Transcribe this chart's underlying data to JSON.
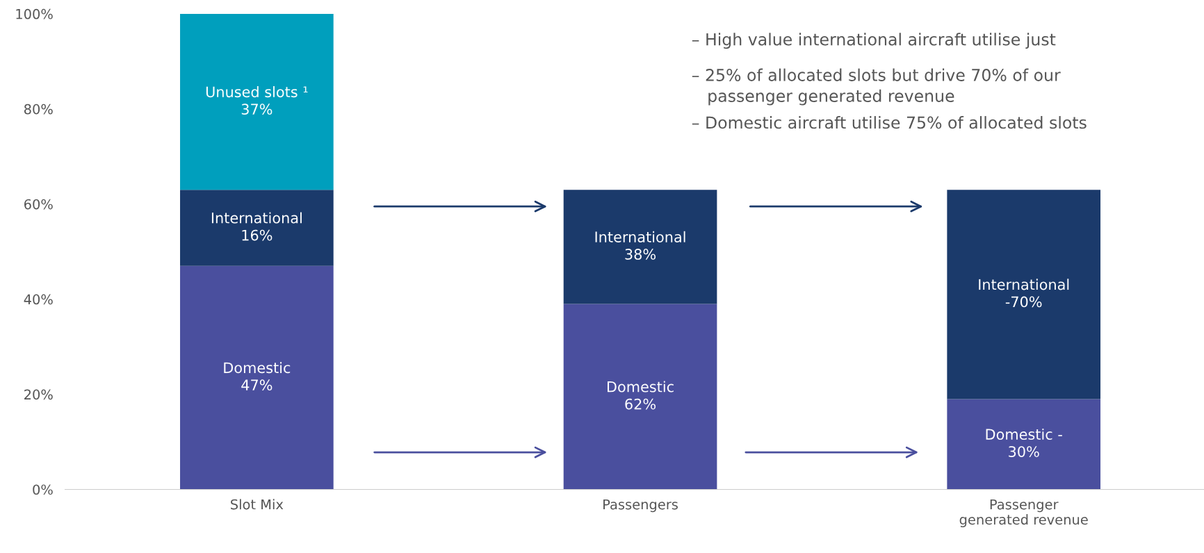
{
  "chart_data": {
    "type": "bar",
    "stacked": true,
    "categories": [
      "Slot Mix",
      "Passengers",
      "Passenger generated revenue"
    ],
    "series": [
      {
        "color": "#4a4f9e",
        "values": [
          47,
          39,
          19
        ]
      },
      {
        "color": "#1b3a6b",
        "values": [
          16,
          24,
          44
        ]
      },
      {
        "color": "#009fbd",
        "values": [
          37,
          null,
          null
        ]
      }
    ],
    "ylim": [
      0,
      100
    ],
    "yticks": [
      {
        "value": 0,
        "label": "0%"
      },
      {
        "value": 20,
        "label": "20%"
      },
      {
        "value": 40,
        "label": "40%"
      },
      {
        "value": 60,
        "label": "60%"
      },
      {
        "value": 80,
        "label": "80%"
      },
      {
        "value": 100,
        "label": "100%"
      }
    ],
    "grid": false,
    "legend": false,
    "annotations": [
      "– High value international aircraft utilise just",
      "– 25% of allocated slots but drive 70% of our\n   passenger generated revenue",
      "– Domestic aircraft utilise 75% of allocated slots",
      "Domestic\n47%",
      "International\n16%",
      "Unused slots ¹\n37%",
      "Domestic\n62%",
      "International\n38%",
      "Domestic -\n30%",
      "International\n-70%"
    ]
  }
}
